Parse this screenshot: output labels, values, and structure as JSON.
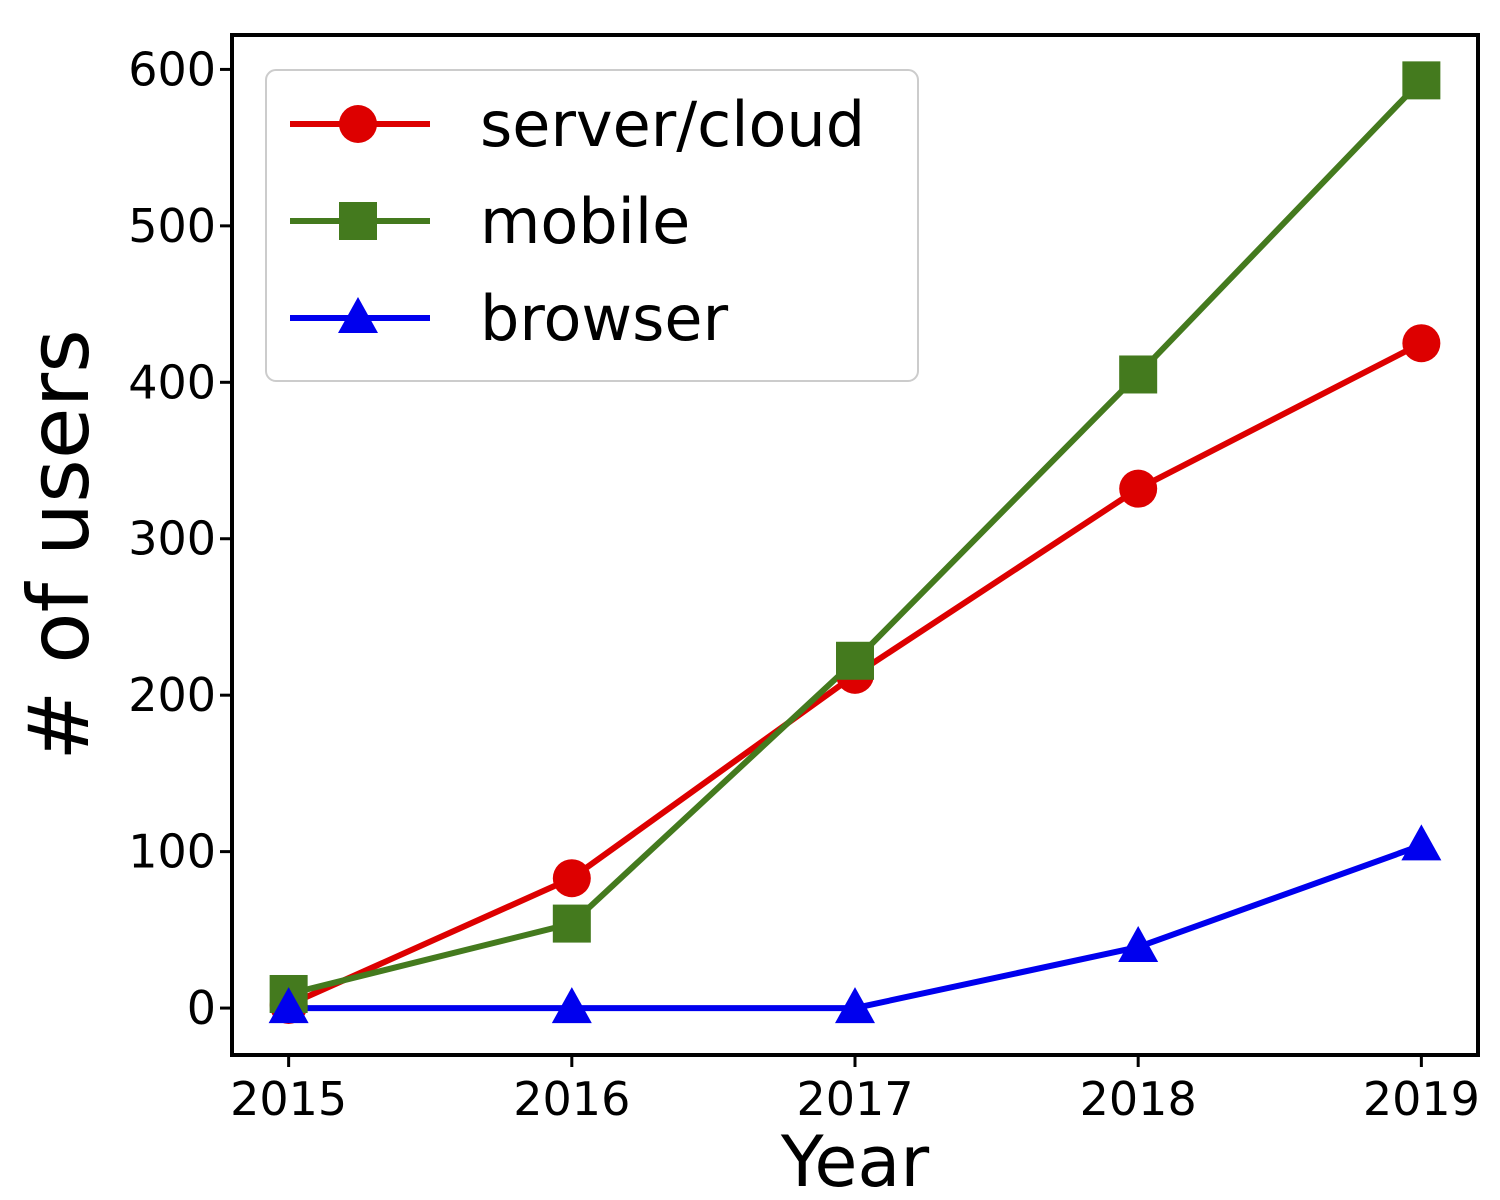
{
  "chart_data": {
    "type": "line",
    "x": [
      2015,
      2016,
      2017,
      2018,
      2019
    ],
    "xlim": [
      2014.8,
      2019.2
    ],
    "ylim": [
      -30,
      622
    ],
    "xticks": [
      2015,
      2016,
      2017,
      2018,
      2019
    ],
    "yticks": [
      0,
      100,
      200,
      300,
      400,
      500,
      600
    ],
    "xlabel": "Year",
    "ylabel": "# of users",
    "grid": false,
    "legend_position": "top-left",
    "series": [
      {
        "name": "server/cloud",
        "color": "#dd0000",
        "marker": "circle",
        "values": [
          2,
          83,
          213,
          332,
          425
        ]
      },
      {
        "name": "mobile",
        "color": "#447a1e",
        "marker": "square",
        "values": [
          9,
          54,
          222,
          405,
          593
        ]
      },
      {
        "name": "browser",
        "color": "#0000ee",
        "marker": "triangle",
        "values": [
          0,
          0,
          0,
          39,
          104
        ]
      }
    ]
  }
}
